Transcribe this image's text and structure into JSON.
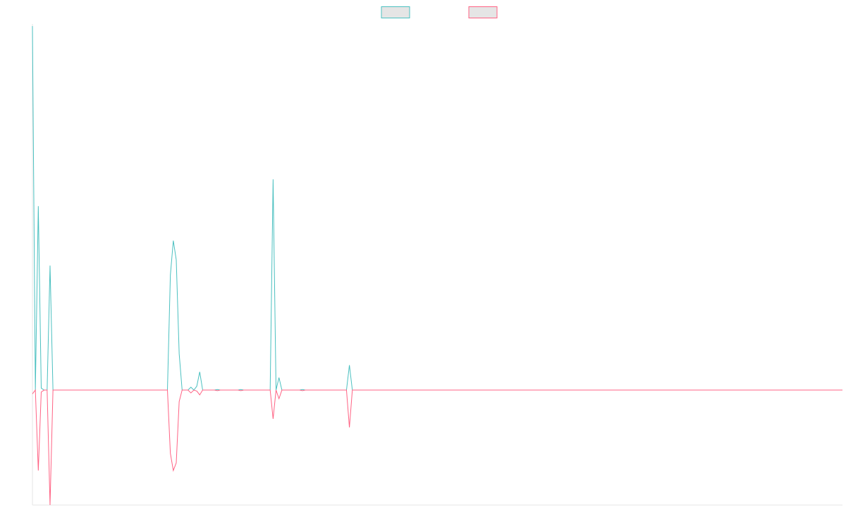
{
  "chart_data": {
    "type": "line",
    "title": "",
    "xlabel": "",
    "ylabel": "",
    "x_count": 277,
    "ylim": [
      -600,
      1900
    ],
    "grid": false,
    "legend_position": "top-center",
    "series": [
      {
        "name": "",
        "color": "#4bc0c0",
        "points": [
          [
            0,
            1900
          ],
          [
            1,
            0
          ],
          [
            2,
            960
          ],
          [
            3,
            10
          ],
          [
            4,
            0
          ],
          [
            5,
            0
          ],
          [
            6,
            650
          ],
          [
            7,
            0
          ],
          [
            46,
            0
          ],
          [
            47,
            600
          ],
          [
            48,
            780
          ],
          [
            49,
            680
          ],
          [
            50,
            190
          ],
          [
            51,
            0
          ],
          [
            53,
            0
          ],
          [
            54,
            15
          ],
          [
            55,
            0
          ],
          [
            56,
            20
          ],
          [
            57,
            95
          ],
          [
            58,
            0
          ],
          [
            62,
            0
          ],
          [
            63,
            3
          ],
          [
            64,
            0
          ],
          [
            70,
            0
          ],
          [
            71,
            3
          ],
          [
            72,
            0
          ],
          [
            81,
            0
          ],
          [
            82,
            1100
          ],
          [
            83,
            0
          ],
          [
            84,
            65
          ],
          [
            85,
            0
          ],
          [
            91,
            0
          ],
          [
            92,
            3
          ],
          [
            93,
            0
          ],
          [
            107,
            0
          ],
          [
            108,
            130
          ],
          [
            109,
            0
          ],
          [
            276,
            0
          ]
        ]
      },
      {
        "name": "",
        "color": "#ff6384",
        "points": [
          [
            0,
            -20
          ],
          [
            1,
            0
          ],
          [
            2,
            -420
          ],
          [
            3,
            -10
          ],
          [
            4,
            0
          ],
          [
            5,
            0
          ],
          [
            6,
            -600
          ],
          [
            7,
            0
          ],
          [
            46,
            0
          ],
          [
            47,
            -330
          ],
          [
            48,
            -420
          ],
          [
            49,
            -380
          ],
          [
            50,
            -60
          ],
          [
            51,
            0
          ],
          [
            53,
            0
          ],
          [
            54,
            -15
          ],
          [
            55,
            0
          ],
          [
            56,
            -5
          ],
          [
            57,
            -25
          ],
          [
            58,
            0
          ],
          [
            62,
            0
          ],
          [
            63,
            -3
          ],
          [
            64,
            0
          ],
          [
            70,
            0
          ],
          [
            71,
            -3
          ],
          [
            72,
            0
          ],
          [
            81,
            0
          ],
          [
            82,
            -150
          ],
          [
            83,
            0
          ],
          [
            84,
            -45
          ],
          [
            85,
            0
          ],
          [
            91,
            0
          ],
          [
            92,
            -3
          ],
          [
            93,
            0
          ],
          [
            107,
            0
          ],
          [
            108,
            -195
          ],
          [
            109,
            0
          ],
          [
            276,
            0
          ]
        ]
      }
    ]
  }
}
